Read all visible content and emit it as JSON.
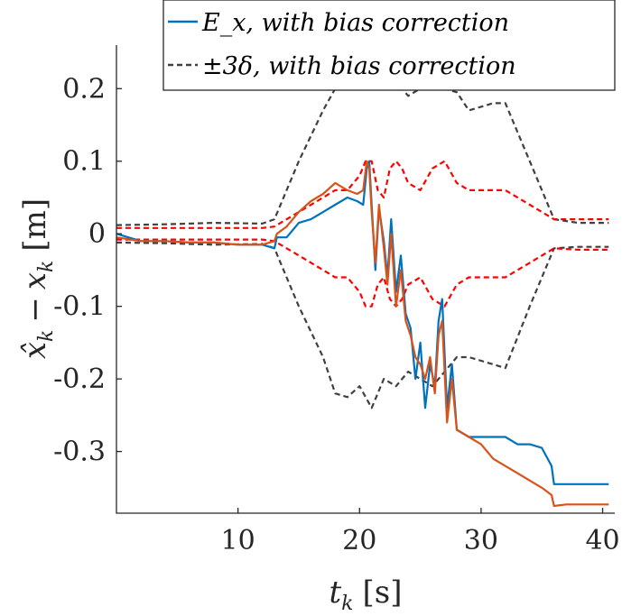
{
  "chart_data": {
    "type": "line",
    "xlabel": "t_k [s]",
    "ylabel": "x̂_k − x_k [m]",
    "xlim": [
      0,
      41
    ],
    "ylim": [
      -0.385,
      0.26
    ],
    "xticks": [
      10,
      20,
      30,
      40
    ],
    "xtick_labels": [
      "10",
      "20",
      "30",
      "40"
    ],
    "yticks": [
      0.2,
      0.1,
      0,
      -0.1,
      -0.2,
      -0.3
    ],
    "ytick_labels": [
      "0.2",
      "0.1",
      "0",
      "-0.1",
      "-0.2",
      "-0.3"
    ],
    "grid": false,
    "legend_position": "top-right",
    "legend": [
      {
        "label": "E_x,   with bias correction",
        "style": "solid",
        "color": "#0072BD"
      },
      {
        "label": "±3δ, with bias correction",
        "style": "dashed",
        "color": "#404040"
      }
    ],
    "series": [
      {
        "name": "E_x,   with bias correction",
        "color": "#0072BD",
        "style": "solid",
        "x": [
          0,
          2,
          4,
          6,
          8,
          10,
          12,
          13,
          13.2,
          14,
          15,
          16,
          17,
          18,
          19,
          19.8,
          20.3,
          20.6,
          20.8,
          21,
          21.3,
          21.6,
          22,
          22.3,
          22.6,
          23,
          23.4,
          23.8,
          24.2,
          24.6,
          25,
          25.4,
          25.8,
          26.2,
          26.5,
          26.8,
          27.2,
          27.6,
          28,
          29,
          30,
          31,
          32,
          33,
          34,
          35,
          35.8,
          36,
          37,
          38,
          39,
          40.5
        ],
        "y": [
          0.0,
          -0.01,
          -0.01,
          -0.012,
          -0.012,
          -0.015,
          -0.015,
          -0.02,
          -0.005,
          -0.005,
          0.015,
          0.02,
          0.03,
          0.04,
          0.05,
          0.045,
          0.04,
          0.09,
          0.1,
          0.04,
          -0.05,
          0.035,
          -0.01,
          -0.06,
          0.02,
          -0.08,
          -0.03,
          -0.11,
          -0.13,
          -0.2,
          -0.15,
          -0.24,
          -0.18,
          -0.21,
          -0.12,
          -0.09,
          -0.24,
          -0.18,
          -0.27,
          -0.28,
          -0.28,
          -0.28,
          -0.28,
          -0.29,
          -0.29,
          -0.295,
          -0.32,
          -0.345,
          -0.345,
          -0.345,
          -0.345,
          -0.345
        ]
      },
      {
        "name": "",
        "color": "#D95319",
        "style": "solid",
        "x": [
          0,
          2,
          4,
          6,
          8,
          10,
          12,
          13,
          13.2,
          14,
          15,
          16,
          17,
          18,
          19,
          19.8,
          20.3,
          20.6,
          20.8,
          21,
          21.3,
          21.6,
          22,
          22.3,
          22.6,
          23,
          23.4,
          23.8,
          24.2,
          24.6,
          25,
          25.4,
          25.8,
          26.2,
          26.5,
          26.8,
          27.2,
          27.6,
          28,
          29,
          30,
          31,
          32,
          33,
          34,
          35,
          35.8,
          36,
          37,
          38,
          39,
          40.5
        ],
        "y": [
          -0.005,
          -0.01,
          -0.01,
          -0.012,
          -0.012,
          -0.015,
          -0.015,
          -0.01,
          0.0,
          0.01,
          0.03,
          0.045,
          0.055,
          0.07,
          0.06,
          0.055,
          0.06,
          0.1,
          0.09,
          0.03,
          -0.04,
          0.04,
          -0.02,
          -0.07,
          0.0,
          -0.1,
          -0.05,
          -0.12,
          -0.14,
          -0.17,
          -0.18,
          -0.2,
          -0.17,
          -0.22,
          -0.14,
          -0.12,
          -0.26,
          -0.2,
          -0.27,
          -0.28,
          -0.29,
          -0.31,
          -0.32,
          -0.33,
          -0.34,
          -0.35,
          -0.36,
          -0.375,
          -0.373,
          -0.373,
          -0.373,
          -0.373
        ]
      },
      {
        "name": "±3δ, with bias correction",
        "color": "#404040",
        "style": "dashed",
        "x": [
          0,
          4,
          8,
          12,
          13,
          15,
          17,
          18,
          19,
          20,
          21,
          22,
          23,
          24,
          25,
          26,
          27,
          28,
          29,
          30,
          31,
          32,
          34,
          36,
          38,
          40.5
        ],
        "y": [
          0.012,
          0.013,
          0.015,
          0.014,
          0.02,
          0.1,
          0.17,
          0.2,
          0.225,
          0.22,
          0.23,
          0.2,
          0.21,
          0.19,
          0.2,
          0.21,
          0.2,
          0.195,
          0.17,
          0.175,
          0.18,
          0.18,
          0.1,
          0.02,
          0.015,
          0.015
        ]
      },
      {
        "name": "",
        "color": "#404040",
        "style": "dashed",
        "x": [
          0,
          4,
          8,
          12,
          13,
          15,
          17,
          18,
          19,
          20,
          21,
          22,
          23,
          24,
          25,
          26,
          27,
          28,
          29,
          30,
          31,
          32,
          34,
          36,
          38,
          40.5
        ],
        "y": [
          -0.012,
          -0.013,
          -0.015,
          -0.014,
          -0.02,
          -0.1,
          -0.17,
          -0.22,
          -0.225,
          -0.21,
          -0.24,
          -0.2,
          -0.21,
          -0.19,
          -0.2,
          -0.21,
          -0.19,
          -0.17,
          -0.17,
          -0.175,
          -0.18,
          -0.185,
          -0.1,
          -0.02,
          -0.018,
          -0.018
        ]
      },
      {
        "name": "",
        "color": "#FF0000",
        "style": "dashed",
        "x": [
          0,
          4,
          8,
          12,
          13,
          15,
          17,
          18,
          19,
          20,
          20.5,
          21,
          21.5,
          22,
          22.5,
          23,
          23.5,
          24,
          25,
          26,
          27,
          28,
          29,
          30,
          32,
          34,
          36,
          38,
          40.5
        ],
        "y": [
          0.008,
          0.008,
          0.008,
          0.008,
          0.01,
          0.03,
          0.05,
          0.06,
          0.06,
          0.08,
          0.1,
          0.1,
          0.06,
          0.05,
          0.09,
          0.1,
          0.09,
          0.07,
          0.06,
          0.09,
          0.1,
          0.07,
          0.06,
          0.06,
          0.06,
          0.04,
          0.02,
          0.02,
          0.02
        ]
      },
      {
        "name": "",
        "color": "#FF0000",
        "style": "dashed",
        "x": [
          0,
          4,
          8,
          12,
          13,
          15,
          17,
          18,
          19,
          20,
          20.5,
          21,
          21.5,
          22,
          22.5,
          23,
          23.5,
          24,
          25,
          26,
          27,
          28,
          29,
          30,
          32,
          34,
          36,
          38,
          40.5
        ],
        "y": [
          -0.008,
          -0.008,
          -0.008,
          -0.008,
          -0.01,
          -0.03,
          -0.05,
          -0.06,
          -0.06,
          -0.08,
          -0.1,
          -0.1,
          -0.07,
          -0.06,
          -0.09,
          -0.1,
          -0.09,
          -0.07,
          -0.06,
          -0.09,
          -0.1,
          -0.07,
          -0.06,
          -0.06,
          -0.06,
          -0.04,
          -0.02,
          -0.022,
          -0.022
        ]
      }
    ]
  }
}
